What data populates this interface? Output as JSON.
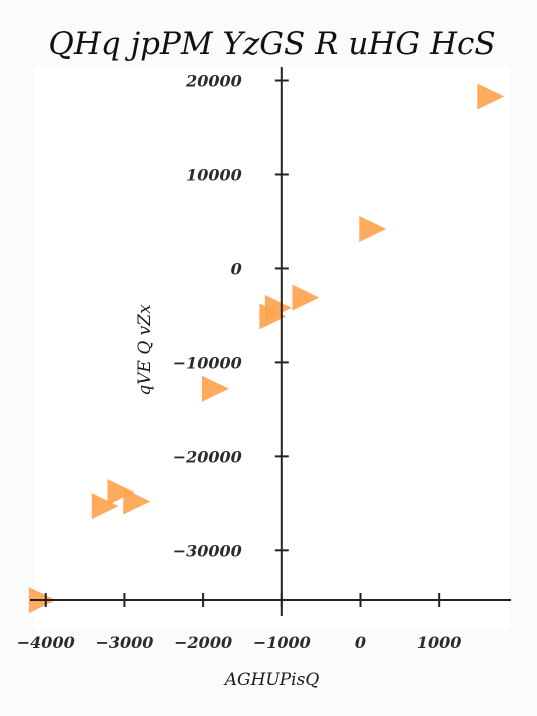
{
  "chart_data": {
    "type": "scatter",
    "title": "QHq jpPM YzGS R uHG HcS",
    "xlabel": "AGHUPisQ",
    "ylabel": "qVE Q vZx",
    "xlim": [
      -4200,
      1900
    ],
    "ylim": [
      -35500,
      20800
    ],
    "xticks": [
      -4000,
      -3000,
      -2000,
      -1000,
      0,
      1000
    ],
    "yticks": [
      20000,
      10000,
      0,
      -10000,
      -20000,
      -30000
    ],
    "marker": "triangle-right",
    "grid": false,
    "series": [
      {
        "color": "#ffa24d",
        "points": [
          {
            "x": 1650,
            "y": 18300
          },
          {
            "x": 150,
            "y": 4200
          },
          {
            "x": -1050,
            "y": -4200
          },
          {
            "x": -700,
            "y": -3100
          },
          {
            "x": -1120,
            "y": -5100
          },
          {
            "x": -1850,
            "y": -12800
          },
          {
            "x": -3050,
            "y": -23800
          },
          {
            "x": -2850,
            "y": -24800
          },
          {
            "x": -3250,
            "y": -25300
          },
          {
            "x": -4050,
            "y": -35300
          }
        ]
      }
    ]
  }
}
